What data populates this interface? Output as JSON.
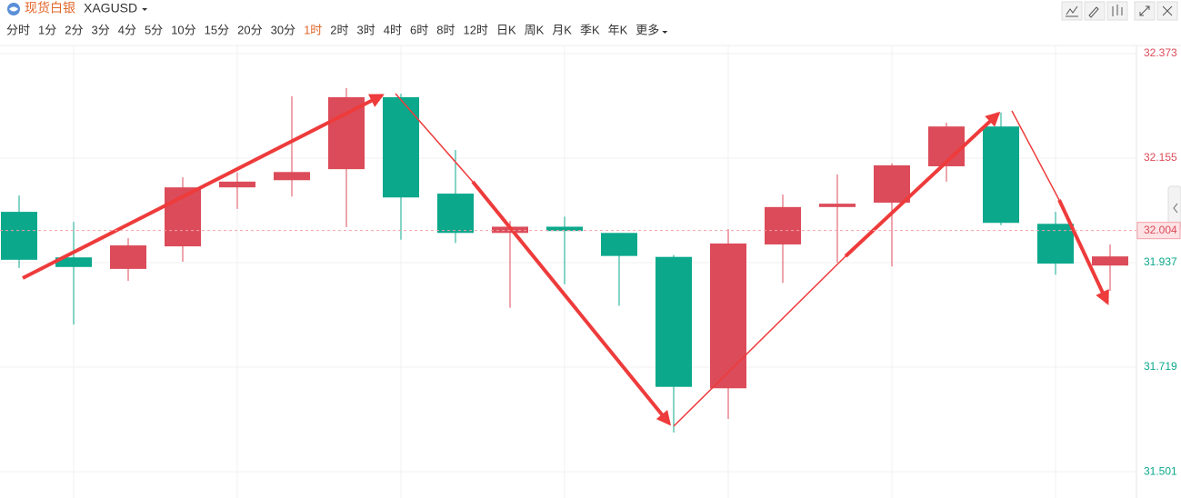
{
  "header": {
    "name": "现货白银",
    "symbol": "XAGUSD"
  },
  "tabs": [
    "分时",
    "1分",
    "2分",
    "3分",
    "4分",
    "5分",
    "10分",
    "15分",
    "20分",
    "30分",
    "1时",
    "2时",
    "3时",
    "4时",
    "6时",
    "8时",
    "12时",
    "日K",
    "周K",
    "月K",
    "季K",
    "年K",
    "更多"
  ],
  "active_tab_index": 10,
  "chart_data": {
    "type": "candlestick",
    "open": [
      32.043,
      31.948,
      31.924,
      31.971,
      32.094,
      32.109,
      32.132,
      32.282,
      32.081,
      31.999,
      32.012,
      31.999,
      31.949,
      31.675,
      31.975,
      32.053,
      32.062,
      32.138,
      32.221,
      32.018,
      31.931
    ],
    "high": [
      32.077,
      32.022,
      31.988,
      32.115,
      32.125,
      32.284,
      32.301,
      32.289,
      32.172,
      32.024,
      32.033,
      31.999,
      31.953,
      32.007,
      32.079,
      32.121,
      32.144,
      32.229,
      32.25,
      32.043,
      31.975
    ],
    "low": [
      31.926,
      31.808,
      31.899,
      31.939,
      32.049,
      32.075,
      32.011,
      31.985,
      31.978,
      31.843,
      31.892,
      31.847,
      31.583,
      31.611,
      31.895,
      31.937,
      31.929,
      32.106,
      32.015,
      31.912,
      31.878
    ],
    "close": [
      31.943,
      31.928,
      31.973,
      32.094,
      32.106,
      32.126,
      32.282,
      32.073,
      31.999,
      32.012,
      32.003,
      31.951,
      31.678,
      31.977,
      32.053,
      32.06,
      32.14,
      32.221,
      32.02,
      31.935,
      31.95
    ],
    "up_color": "#dc4b59",
    "down_color": "#0ba88c",
    "last_price": 32.004,
    "ylim": [
      31.486,
      32.39
    ],
    "yticks": [
      32.373,
      32.155,
      31.937,
      31.719,
      31.501
    ],
    "grid": true
  }
}
